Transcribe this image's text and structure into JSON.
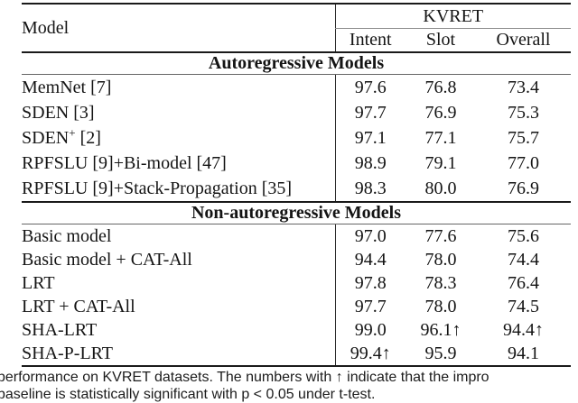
{
  "colors": {
    "background": "#ffffff",
    "text": "#141414",
    "rule_heavy": "#1a1a1a",
    "rule_light": "#8a8a8a"
  },
  "table": {
    "header": {
      "model_col": "Model",
      "group_col": "KVRET",
      "subcols": [
        "Intent",
        "Slot",
        "Overall"
      ]
    },
    "sections": [
      {
        "title": "Autoregressive Models",
        "rows": [
          {
            "model": "MemNet [7]",
            "intent": "97.6",
            "slot": "76.8",
            "overall": "73.4"
          },
          {
            "model": "SDEN [3]",
            "intent": "97.7",
            "slot": "76.9",
            "overall": "75.3"
          },
          {
            "model_base": "SDEN",
            "model_sup": "+",
            "model_rest": " [2]",
            "intent": "97.1",
            "slot": "77.1",
            "overall": "75.7"
          },
          {
            "model": "RPFSLU [9]+Bi-model [47]",
            "intent": "98.9",
            "slot": "79.1",
            "overall": "77.0"
          },
          {
            "model": "RPFSLU [9]+Stack-Propagation [35]",
            "intent": "98.3",
            "slot": "80.0",
            "overall": "76.9"
          }
        ]
      },
      {
        "title": "Non-autoregressive Models",
        "rows": [
          {
            "model": "Basic model",
            "intent": "97.0",
            "slot": "77.6",
            "overall": "75.6"
          },
          {
            "model": "Basic model + CAT-All",
            "intent": "94.4",
            "slot": "78.0",
            "overall": "74.4"
          },
          {
            "model": "LRT",
            "intent": "97.8",
            "slot": "78.3",
            "overall": "76.4"
          },
          {
            "model": "LRT + CAT-All",
            "intent": "97.7",
            "slot": "78.0",
            "overall": "74.5"
          },
          {
            "model": "SHA-LRT",
            "intent": "99.0",
            "slot": "96.1↑",
            "overall": "94.4↑"
          },
          {
            "model": "SHA-P-LRT",
            "intent": "99.4↑",
            "slot": "95.9",
            "overall": "94.1"
          }
        ]
      }
    ]
  },
  "caption": {
    "line1": "performance on KVRET datasets. The numbers with ↑ indicate that the impro",
    "line2": "baseline is statistically significant with p < 0.05 under t-test."
  }
}
